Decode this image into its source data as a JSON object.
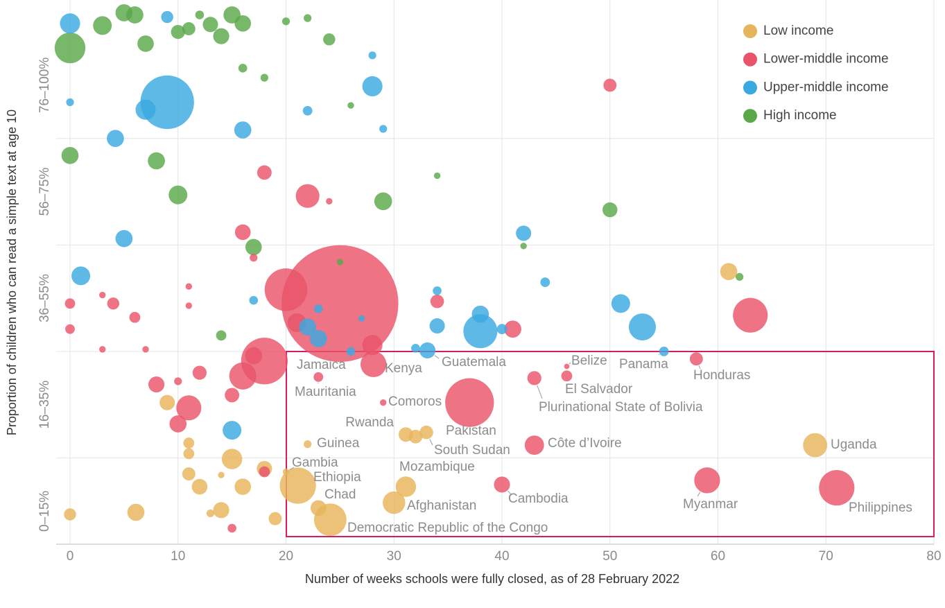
{
  "chart_data": {
    "type": "scatter",
    "x_label": "Number of weeks schools were fully closed, as of 28 February 2022",
    "y_label": "Proportion of children who can read a simple text at age 10",
    "xlim": [
      0,
      80
    ],
    "xticks": [
      0,
      10,
      20,
      30,
      40,
      50,
      60,
      70,
      80
    ],
    "ylim": [
      -0.31,
      4.8
    ],
    "yticks": [
      {
        "value": 0,
        "label": "0–15%"
      },
      {
        "value": 1,
        "label": "16–35%"
      },
      {
        "value": 2,
        "label": "36–55%"
      },
      {
        "value": 3,
        "label": "56–75%"
      },
      {
        "value": 4,
        "label": "76–100%"
      }
    ],
    "ygrid": [
      0.5,
      1.5,
      2.5,
      3.5
    ],
    "grid": true,
    "legend": "top-right",
    "series": [
      {
        "name": "Low income",
        "color": "#e6b45a",
        "x": [
          22,
          20,
          21.1,
          23,
          24.1,
          30,
          31.1,
          31.1,
          33,
          69,
          32,
          61,
          0,
          6.1,
          9,
          11,
          11,
          11,
          12,
          15,
          16,
          18,
          14,
          13,
          14,
          19
        ],
        "values": [
          0.63,
          0.37,
          0.24,
          0.03,
          -0.08,
          0.08,
          0.23,
          0.72,
          0.74,
          0.62,
          0.7,
          2.25,
          -0.03,
          -0.01,
          1.02,
          0.64,
          0.54,
          0.35,
          0.23,
          0.49,
          0.23,
          0.4,
          0.01,
          -0.02,
          0.34,
          -0.07
        ],
        "sizes": [
          2,
          1,
          115,
          16,
          90,
          39,
          31,
          13,
          11,
          46,
          11,
          20,
          8,
          20,
          15,
          6,
          6,
          10,
          16,
          31,
          18,
          15,
          17,
          2,
          1,
          10
        ],
        "labels": [
          "Guinea",
          "Gambia",
          "Ethiopia",
          "Chad",
          "Democratic Republic of the Congo",
          "Afghanistan",
          "Mozambique",
          "Rwanda",
          "South Sudan",
          "Uganda",
          null,
          null,
          null,
          null,
          null,
          null,
          null,
          null,
          null,
          null,
          null,
          null,
          null,
          null,
          null,
          null
        ]
      },
      {
        "name": "Lower-middle income",
        "color": "#e9546a",
        "x": [
          23,
          29,
          37,
          28.1,
          43,
          40,
          43,
          46,
          46,
          58,
          59,
          71,
          25,
          20,
          18,
          16,
          17,
          8,
          11,
          10,
          15,
          12,
          10,
          28,
          21,
          41,
          34,
          63,
          50,
          18,
          22,
          24,
          16,
          17,
          0,
          4,
          6,
          0,
          3,
          15,
          18,
          11,
          11,
          3,
          7
        ],
        "values": [
          1.26,
          1.02,
          1.02,
          1.38,
          0.62,
          0.25,
          1.25,
          1.27,
          1.36,
          1.43,
          0.29,
          0.22,
          1.95,
          2.08,
          1.41,
          1.27,
          1.46,
          1.19,
          0.97,
          0.82,
          1.09,
          1.3,
          1.22,
          1.56,
          1.77,
          1.71,
          1.97,
          1.84,
          4.0,
          3.18,
          2.96,
          2.91,
          2.62,
          2.38,
          1.95,
          1.95,
          1.82,
          1.71,
          2.03,
          -0.16,
          0.37,
          2.11,
          1.93,
          1.52,
          1.52
        ],
        "sizes": [
          4,
          1,
          220,
          54,
          27,
          17,
          12,
          6,
          0.4,
          10,
          54,
          110,
          1380,
          165,
          200,
          60,
          20,
          17,
          50,
          20,
          13,
          12,
          2,
          30,
          25,
          20,
          11,
          105,
          10,
          13,
          44,
          1,
          16,
          2,
          5,
          8,
          6,
          4,
          1,
          3,
          6,
          1,
          1,
          1,
          1
        ],
        "labels": [
          "Mauritania",
          "Comoros",
          "Pakistan",
          "Kenya",
          "Côte d’Ivoire",
          "Cambodia",
          "Plurinational State of Bolivia",
          "El Salvador",
          "Belize",
          "Honduras",
          "Myanmar",
          "Philippines",
          null,
          null,
          null,
          null,
          null,
          null,
          null,
          null,
          null,
          null,
          null,
          null,
          null,
          null,
          null,
          null,
          null,
          null,
          null,
          null,
          null,
          null,
          null,
          null,
          null,
          null,
          null,
          null,
          null,
          null,
          null,
          null,
          null
        ]
      },
      {
        "name": "Upper-middle income",
        "color": "#3aa9e0",
        "x": [
          26,
          33.1,
          55,
          9,
          7,
          0,
          28,
          16,
          4.2,
          5,
          1,
          15,
          22,
          23,
          38,
          38,
          53,
          51,
          42,
          34,
          44,
          40,
          9,
          0,
          22,
          29,
          28,
          17,
          34,
          27,
          23,
          32
        ],
        "values": [
          1.5,
          1.51,
          1.5,
          3.84,
          3.77,
          4.58,
          3.99,
          3.58,
          3.5,
          2.56,
          2.21,
          0.76,
          1.73,
          1.62,
          1.85,
          1.69,
          1.73,
          1.95,
          2.61,
          1.74,
          2.15,
          1.71,
          4.64,
          3.84,
          3.76,
          3.59,
          4.28,
          1.98,
          2.07,
          1.81,
          1.9,
          1.53
        ],
        "sizes": [
          3,
          17,
          4,
          270,
          30,
          30,
          30,
          20,
          20,
          20,
          25,
          25,
          20,
          20,
          20,
          100,
          60,
          25,
          15,
          15,
          4,
          5,
          8,
          2,
          4,
          2,
          2,
          3,
          3,
          1,
          3,
          3
        ],
        "labels": [
          "Jamaica",
          "Guatemala",
          "Panama",
          null,
          null,
          null,
          null,
          null,
          null,
          null,
          null,
          null,
          null,
          null,
          null,
          null,
          null,
          null,
          null,
          null,
          null,
          null,
          null,
          null,
          null,
          null,
          null,
          null,
          null,
          null,
          null,
          null
        ]
      },
      {
        "name": "High income",
        "color": "#5aa84a",
        "x": [
          0,
          5,
          6,
          3,
          15,
          16,
          13,
          14,
          10,
          11,
          7,
          0,
          8,
          10,
          29,
          50,
          17,
          14,
          12,
          20,
          22,
          24,
          18,
          16,
          26,
          34,
          62,
          25,
          42
        ],
        "values": [
          4.35,
          4.68,
          4.66,
          4.56,
          4.66,
          4.58,
          4.57,
          4.46,
          4.5,
          4.53,
          4.39,
          3.34,
          3.29,
          2.97,
          2.91,
          2.83,
          2.48,
          1.65,
          4.66,
          4.6,
          4.63,
          4.43,
          4.07,
          4.16,
          3.81,
          3.15,
          2.2,
          2.34,
          2.49
        ],
        "sizes": [
          80,
          20,
          20,
          25,
          20,
          18,
          15,
          17,
          12,
          10,
          18,
          20,
          20,
          25,
          22,
          14,
          18,
          5,
          3,
          2,
          2,
          8,
          2,
          3,
          1,
          1,
          2,
          1,
          1
        ]
      }
    ]
  }
}
